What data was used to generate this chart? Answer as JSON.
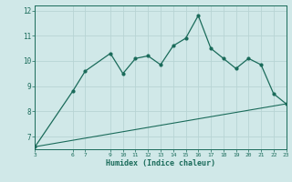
{
  "xlabel": "Humidex (Indice chaleur)",
  "bg_color": "#d0e8e8",
  "grid_color": "#b8d4d4",
  "line_color": "#1a6b5a",
  "x_data": [
    3,
    6,
    7,
    9,
    10,
    11,
    12,
    13,
    14,
    15,
    16,
    17,
    18,
    19,
    20,
    21,
    22,
    23
  ],
  "y_data": [
    6.6,
    8.8,
    9.6,
    10.3,
    9.5,
    10.1,
    10.2,
    9.85,
    10.6,
    10.9,
    11.8,
    10.5,
    10.1,
    9.7,
    10.1,
    9.85,
    8.7,
    8.3
  ],
  "trend_x": [
    3,
    23
  ],
  "trend_y": [
    6.6,
    8.3
  ],
  "ylim": [
    6.5,
    12.2
  ],
  "xlim": [
    3,
    23
  ],
  "yticks": [
    7,
    8,
    9,
    10,
    11,
    12
  ],
  "xticks": [
    3,
    6,
    7,
    9,
    10,
    11,
    12,
    13,
    14,
    15,
    16,
    17,
    18,
    19,
    20,
    21,
    22,
    23
  ]
}
